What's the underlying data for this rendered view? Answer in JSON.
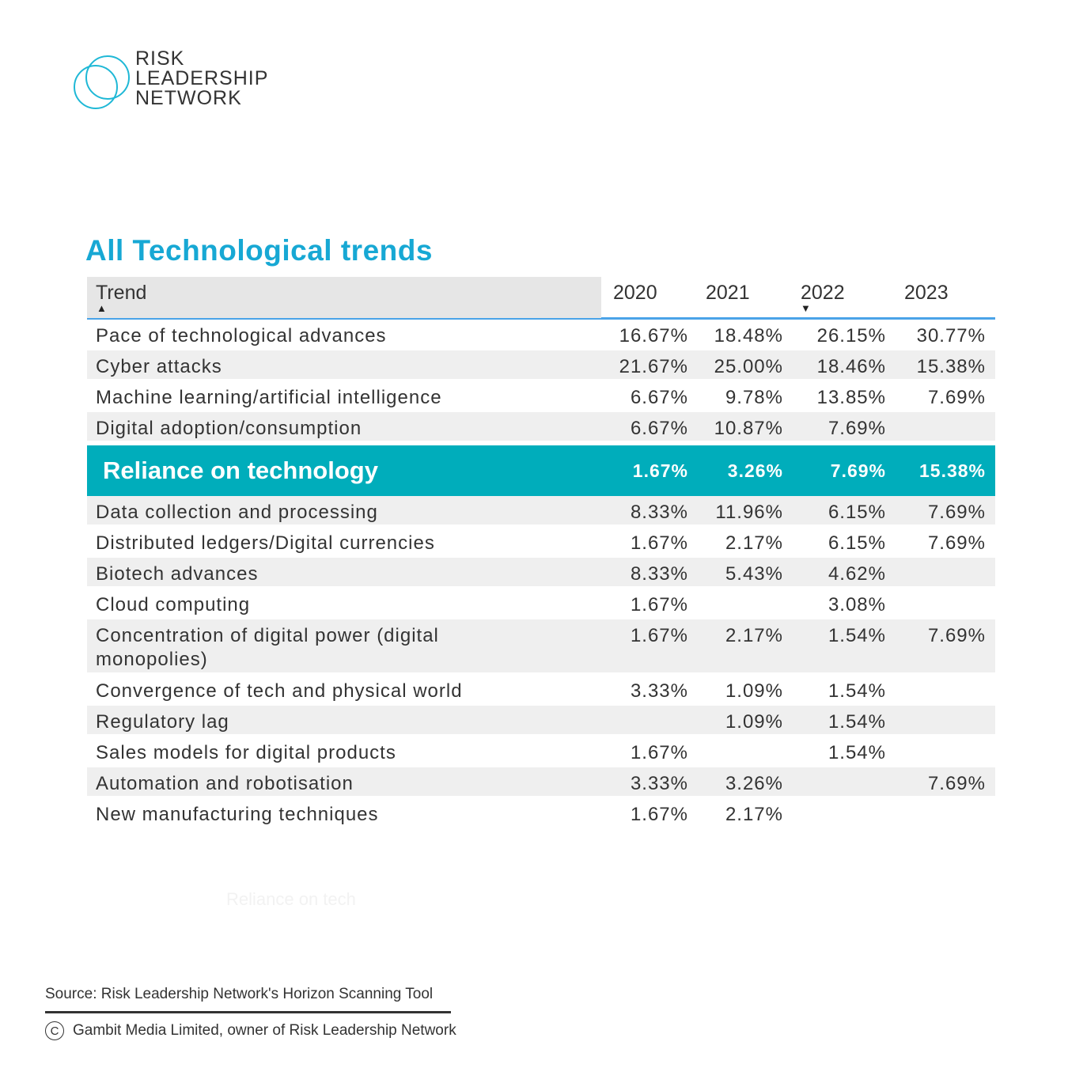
{
  "brand": {
    "line1": "RISK",
    "line2": "LEADERSHIP",
    "line3": "NETWORK",
    "color": "#1fb8d6"
  },
  "title": "All Technological trends",
  "colors": {
    "title": "#17a8d4",
    "highlight": "#00adbb",
    "header_rule": "#4aa3e8"
  },
  "table": {
    "headers": [
      "Trend",
      "2020",
      "2021",
      "2022",
      "2023"
    ],
    "sort": {
      "Trend": "ascending",
      "2022": "descending"
    },
    "rows_before": [
      {
        "name": "Pace of technological advances",
        "v": [
          "16.67%",
          "18.48%",
          "26.15%",
          "30.77%"
        ]
      },
      {
        "name": "Cyber attacks",
        "v": [
          "21.67%",
          "25.00%",
          "18.46%",
          "15.38%"
        ]
      },
      {
        "name": "Machine learning/artificial intelligence",
        "v": [
          "6.67%",
          "9.78%",
          "13.85%",
          "7.69%"
        ]
      },
      {
        "name": "Digital adoption/consumption",
        "v": [
          "6.67%",
          "10.87%",
          "7.69%",
          ""
        ]
      }
    ],
    "highlight": {
      "name": "Reliance on technology",
      "v": [
        "1.67%",
        "3.26%",
        "7.69%",
        "15.38%"
      ]
    },
    "rows_after": [
      {
        "name": "Data collection and processing",
        "v": [
          "8.33%",
          "11.96%",
          "6.15%",
          "7.69%"
        ]
      },
      {
        "name": "Distributed ledgers/Digital currencies",
        "v": [
          "1.67%",
          "2.17%",
          "6.15%",
          "7.69%"
        ]
      },
      {
        "name": "Biotech advances",
        "v": [
          "8.33%",
          "5.43%",
          "4.62%",
          ""
        ]
      },
      {
        "name": "Cloud computing",
        "v": [
          "1.67%",
          "",
          "3.08%",
          ""
        ]
      },
      {
        "name": "Concentration of digital power (digital monopolies)",
        "v": [
          "1.67%",
          "2.17%",
          "1.54%",
          "7.69%"
        ]
      },
      {
        "name": "Convergence of tech and physical world",
        "v": [
          "3.33%",
          "1.09%",
          "1.54%",
          ""
        ]
      },
      {
        "name": "Regulatory lag",
        "v": [
          "",
          "1.09%",
          "1.54%",
          ""
        ]
      },
      {
        "name": "Sales models for digital products",
        "v": [
          "1.67%",
          "",
          "1.54%",
          ""
        ]
      },
      {
        "name": "Automation and robotisation",
        "v": [
          "3.33%",
          "3.26%",
          "",
          "7.69%"
        ]
      },
      {
        "name": "New manufacturing techniques",
        "v": [
          "1.67%",
          "2.17%",
          "",
          ""
        ]
      }
    ]
  },
  "faint_label": "Reliance on tech",
  "footer": {
    "source": "Source: Risk Leadership Network's Horizon Scanning Tool",
    "copyright_symbol": "C",
    "copyright": "Gambit Media Limited, owner of Risk Leadership Network"
  }
}
